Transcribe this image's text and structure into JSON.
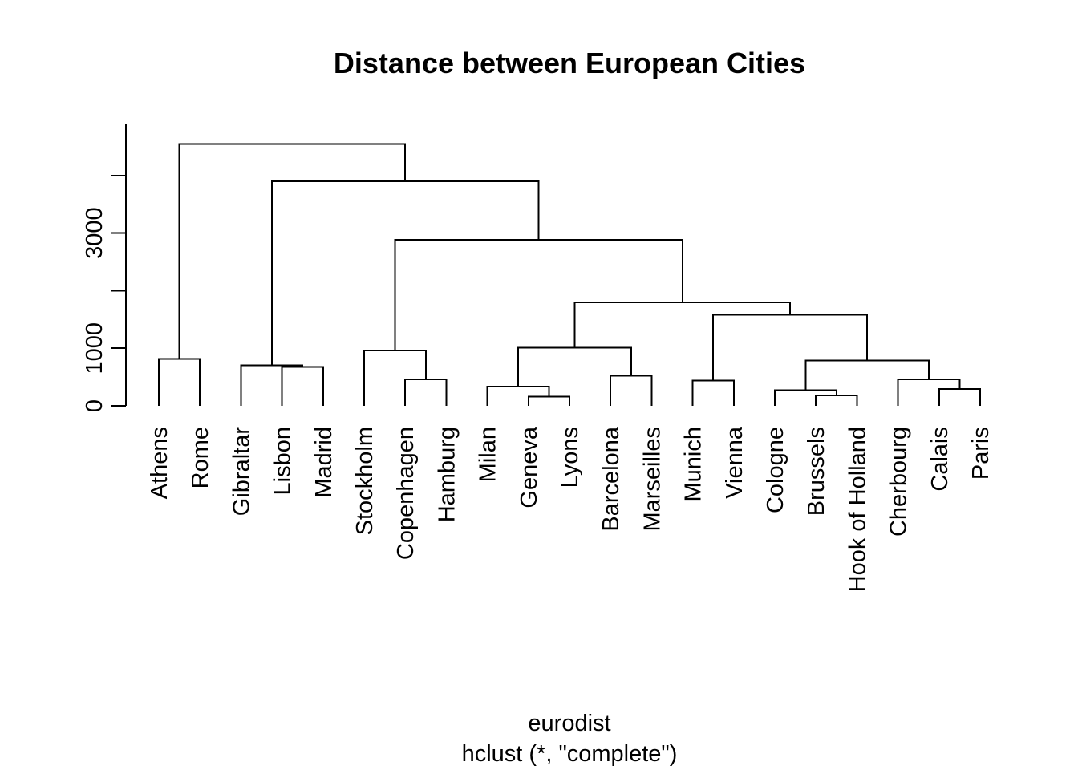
{
  "chart_data": {
    "type": "dendrogram",
    "title": "Distance between European Cities",
    "xlabel": "eurodist",
    "sub": "hclust (*, \"complete\")",
    "ylabel": "",
    "ylim": [
      0,
      4900
    ],
    "y_ticks": [
      0,
      1000,
      2000,
      3000,
      4000
    ],
    "y_tick_labels": [
      "0",
      "1000",
      "",
      "3000",
      ""
    ],
    "leaves": [
      "Athens",
      "Rome",
      "Gibraltar",
      "Lisbon",
      "Madrid",
      "Stockholm",
      "Copenhagen",
      "Hamburg",
      "Milan",
      "Geneva",
      "Lyons",
      "Barcelona",
      "Marseilles",
      "Munich",
      "Vienna",
      "Cologne",
      "Brussels",
      "Hook of Holland",
      "Cherbourg",
      "Calais",
      "Paris"
    ],
    "merges": [
      {
        "left": "Hook of Holland",
        "right": "Brussels",
        "height": 180
      },
      {
        "left": "Geneva",
        "right": "Lyons",
        "height": 160
      },
      {
        "left": "Calais",
        "right": "Paris",
        "height": 290
      },
      {
        "left": "Cologne",
        "right": "Brussels + Hook of Holland",
        "height": 275
      },
      {
        "left": "Milan",
        "right": "Geneva + Lyons",
        "height": 335
      },
      {
        "left": "Cherbourg",
        "right": "Calais + Paris",
        "height": 460
      },
      {
        "left": "Munich",
        "right": "Vienna",
        "height": 440
      },
      {
        "left": "Copenhagen",
        "right": "Hamburg",
        "height": 460
      },
      {
        "left": "Barcelona",
        "right": "Marseilles",
        "height": 520
      },
      {
        "left": "Lisbon",
        "right": "Madrid",
        "height": 675
      },
      {
        "left": "Gibraltar",
        "right": "Lisbon + Madrid",
        "height": 705
      },
      {
        "left": "Athens",
        "right": "Rome",
        "height": 817
      },
      {
        "left": "Cologne + Brussels + Hook of Holland",
        "right": "Cherbourg + Calais + Paris",
        "height": 785
      },
      {
        "left": "Stockholm",
        "right": "Copenhagen + Hamburg",
        "height": 960
      },
      {
        "left": "Milan + Geneva + Lyons",
        "right": "Barcelona + Marseilles",
        "height": 1010
      },
      {
        "left": "Munich + Vienna",
        "right": "Cologne ... Paris",
        "height": 1580
      },
      {
        "left": "Milan ... Marseilles",
        "right": "Munich ... Paris",
        "height": 1800
      },
      {
        "left": "Stockholm + Copenhagen + Hamburg",
        "right": "Milan ... Paris",
        "height": 2885
      },
      {
        "left": "Gibraltar + Lisbon + Madrid",
        "right": "Stockholm ... Paris",
        "height": 3900
      },
      {
        "left": "Athens + Rome",
        "right": "Gibraltar ... Paris",
        "height": 4550
      }
    ]
  }
}
